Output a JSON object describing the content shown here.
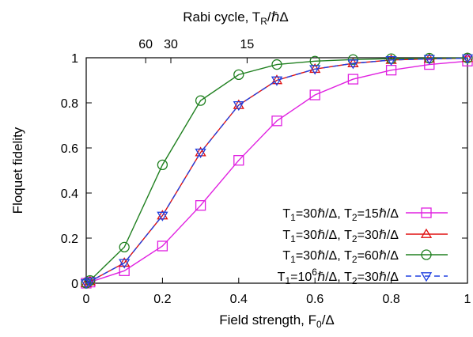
{
  "chart_data": {
    "type": "line",
    "xlabel_main": "Field strength, F",
    "xlabel_sub": "0",
    "xlabel_tail": "/Δ",
    "ylabel": "Floquet fidelity",
    "top_axis": {
      "title_main": "Rabi cycle, T",
      "title_sub": "R",
      "title_tail": "/ℏΔ",
      "ticks": [
        {
          "label": "60",
          "x": 0.156
        },
        {
          "label": "30",
          "x": 0.222
        },
        {
          "label": "15",
          "x": 0.422
        }
      ]
    },
    "xlim": [
      0,
      1
    ],
    "ylim": [
      0,
      1
    ],
    "xticks": [
      {
        "v": 0,
        "label": "0"
      },
      {
        "v": 0.2,
        "label": "0.2"
      },
      {
        "v": 0.4,
        "label": "0.4"
      },
      {
        "v": 0.6,
        "label": "0.6"
      },
      {
        "v": 0.8,
        "label": "0.8"
      },
      {
        "v": 1,
        "label": "1"
      }
    ],
    "yticks": [
      {
        "v": 0,
        "label": "0"
      },
      {
        "v": 0.2,
        "label": "0.2"
      },
      {
        "v": 0.4,
        "label": "0.4"
      },
      {
        "v": 0.6,
        "label": "0.6"
      },
      {
        "v": 0.8,
        "label": "0.8"
      },
      {
        "v": 1,
        "label": "1"
      }
    ],
    "legend_position": "bottom-right",
    "series": [
      {
        "name_parts": [
          {
            "t": "T"
          },
          {
            "t": "1",
            "sub": true
          },
          {
            "t": "=30ℏ/Δ, T"
          },
          {
            "t": "2",
            "sub": true
          },
          {
            "t": "=15ℏ/Δ"
          }
        ],
        "color": "#e020e0",
        "marker": "square",
        "dash": false,
        "x": [
          0,
          0.01,
          0.1,
          0.2,
          0.3,
          0.4,
          0.5,
          0.6,
          0.7,
          0.8,
          0.9,
          1.0
        ],
        "y": [
          0.0,
          0.005,
          0.055,
          0.165,
          0.345,
          0.545,
          0.72,
          0.835,
          0.905,
          0.945,
          0.97,
          0.985
        ]
      },
      {
        "name_parts": [
          {
            "t": "T"
          },
          {
            "t": "1",
            "sub": true
          },
          {
            "t": "=30ℏ/Δ, T"
          },
          {
            "t": "2",
            "sub": true
          },
          {
            "t": "=30ℏ/Δ"
          }
        ],
        "color": "#e01010",
        "marker": "triangle-up",
        "dash": false,
        "x": [
          0,
          0.01,
          0.1,
          0.2,
          0.3,
          0.4,
          0.5,
          0.6,
          0.7,
          0.8,
          0.9,
          1.0
        ],
        "y": [
          0.0,
          0.008,
          0.09,
          0.3,
          0.58,
          0.79,
          0.9,
          0.95,
          0.975,
          0.99,
          0.995,
          0.998
        ]
      },
      {
        "name_parts": [
          {
            "t": "T"
          },
          {
            "t": "1",
            "sub": true
          },
          {
            "t": "=30ℏ/Δ, T"
          },
          {
            "t": "2",
            "sub": true
          },
          {
            "t": "=60ℏ/Δ"
          }
        ],
        "color": "#208020",
        "marker": "circle",
        "dash": false,
        "x": [
          0,
          0.01,
          0.1,
          0.2,
          0.3,
          0.4,
          0.5,
          0.6,
          0.7,
          0.8,
          0.9,
          1.0
        ],
        "y": [
          0.0,
          0.012,
          0.16,
          0.525,
          0.81,
          0.925,
          0.97,
          0.985,
          0.992,
          0.996,
          0.998,
          0.999
        ]
      },
      {
        "name_parts": [
          {
            "t": "T"
          },
          {
            "t": "1",
            "sub": true
          },
          {
            "t": "=10"
          },
          {
            "t": "6",
            "sup": true
          },
          {
            "t": "ℏ/Δ, T"
          },
          {
            "t": "2",
            "sub": true
          },
          {
            "t": "=30ℏ/Δ"
          }
        ],
        "color": "#2040e0",
        "marker": "triangle-down",
        "dash": true,
        "x": [
          0,
          0.01,
          0.1,
          0.2,
          0.3,
          0.4,
          0.5,
          0.6,
          0.7,
          0.8,
          0.9,
          1.0
        ],
        "y": [
          0.0,
          0.008,
          0.09,
          0.3,
          0.58,
          0.79,
          0.9,
          0.95,
          0.975,
          0.99,
          0.995,
          0.998
        ]
      }
    ]
  }
}
